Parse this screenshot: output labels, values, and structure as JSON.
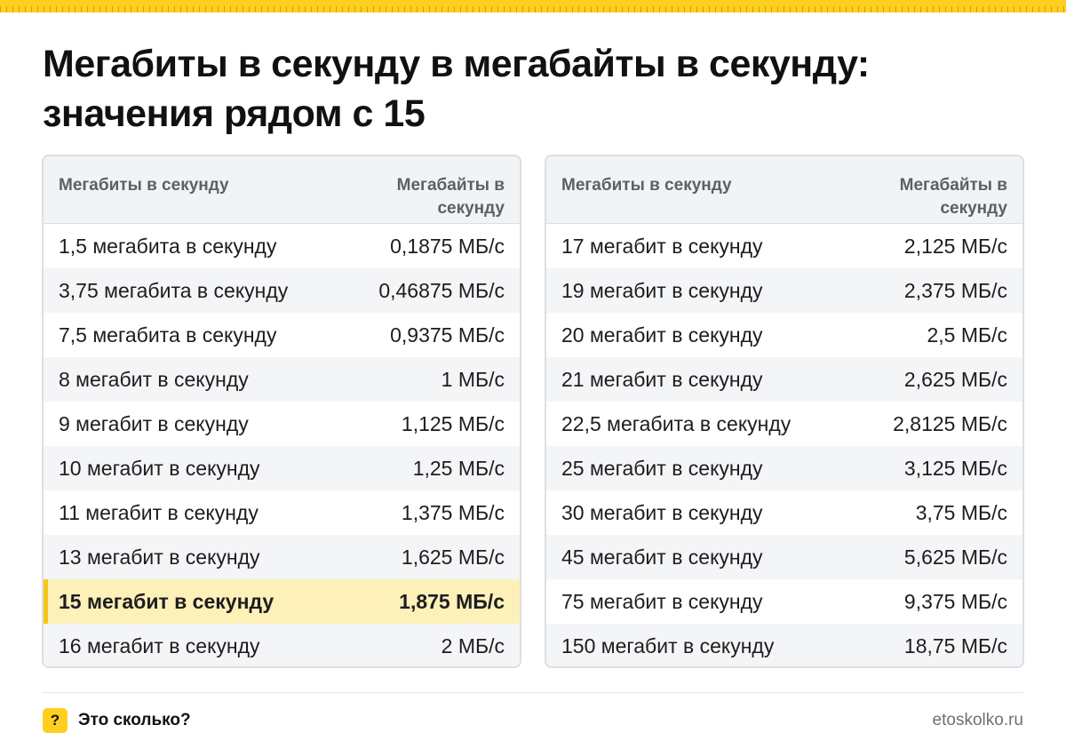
{
  "title": "Мегабиты в секунду в мегабайты в секунду: значения рядом с 15",
  "columns": {
    "left_header": "Мегабиты в секунду",
    "right_header": "Мегабайты в секунду"
  },
  "left_table": [
    {
      "label": "1,5 мегабита в секунду",
      "value": "0,1875 МБ/с"
    },
    {
      "label": "3,75 мегабита в секунду",
      "value": "0,46875 МБ/с"
    },
    {
      "label": "7,5 мегабита в секунду",
      "value": "0,9375 МБ/с"
    },
    {
      "label": "8 мегабит в секунду",
      "value": "1 МБ/с"
    },
    {
      "label": "9 мегабит в секунду",
      "value": "1,125 МБ/с"
    },
    {
      "label": "10 мегабит в секунду",
      "value": "1,25 МБ/с"
    },
    {
      "label": "11 мегабит в секунду",
      "value": "1,375 МБ/с"
    },
    {
      "label": "13 мегабит в секунду",
      "value": "1,625 МБ/с"
    },
    {
      "label": "15 мегабит в секунду",
      "value": "1,875 МБ/с",
      "highlighted": true
    },
    {
      "label": "16 мегабит в секунду",
      "value": "2 МБ/с"
    }
  ],
  "right_table": [
    {
      "label": "17 мегабит в секунду",
      "value": "2,125 МБ/с"
    },
    {
      "label": "19 мегабит в секунду",
      "value": "2,375 МБ/с"
    },
    {
      "label": "20 мегабит в секунду",
      "value": "2,5 МБ/с"
    },
    {
      "label": "21 мегабит в секунду",
      "value": "2,625 МБ/с"
    },
    {
      "label": "22,5 мегабита в секунду",
      "value": "2,8125 МБ/с"
    },
    {
      "label": "25 мегабит в секунду",
      "value": "3,125 МБ/с"
    },
    {
      "label": "30 мегабит в секунду",
      "value": "3,75 МБ/с"
    },
    {
      "label": "45 мегабит в секунду",
      "value": "5,625 МБ/с"
    },
    {
      "label": "75 мегабит в секунду",
      "value": "9,375 МБ/с"
    },
    {
      "label": "150 мегабит в секунду",
      "value": "18,75 МБ/с"
    }
  ],
  "footer": {
    "icon_glyph": "?",
    "icon_name": "question-icon",
    "brand": "Это сколько?",
    "site": "etoskolko.ru"
  },
  "colors": {
    "accent": "#ffcf1f",
    "highlight_row": "#fdf1b9",
    "highlight_bar": "#f5c518",
    "header_bg": "#f2f3f5",
    "stripe_row": "#f4f5f7"
  }
}
